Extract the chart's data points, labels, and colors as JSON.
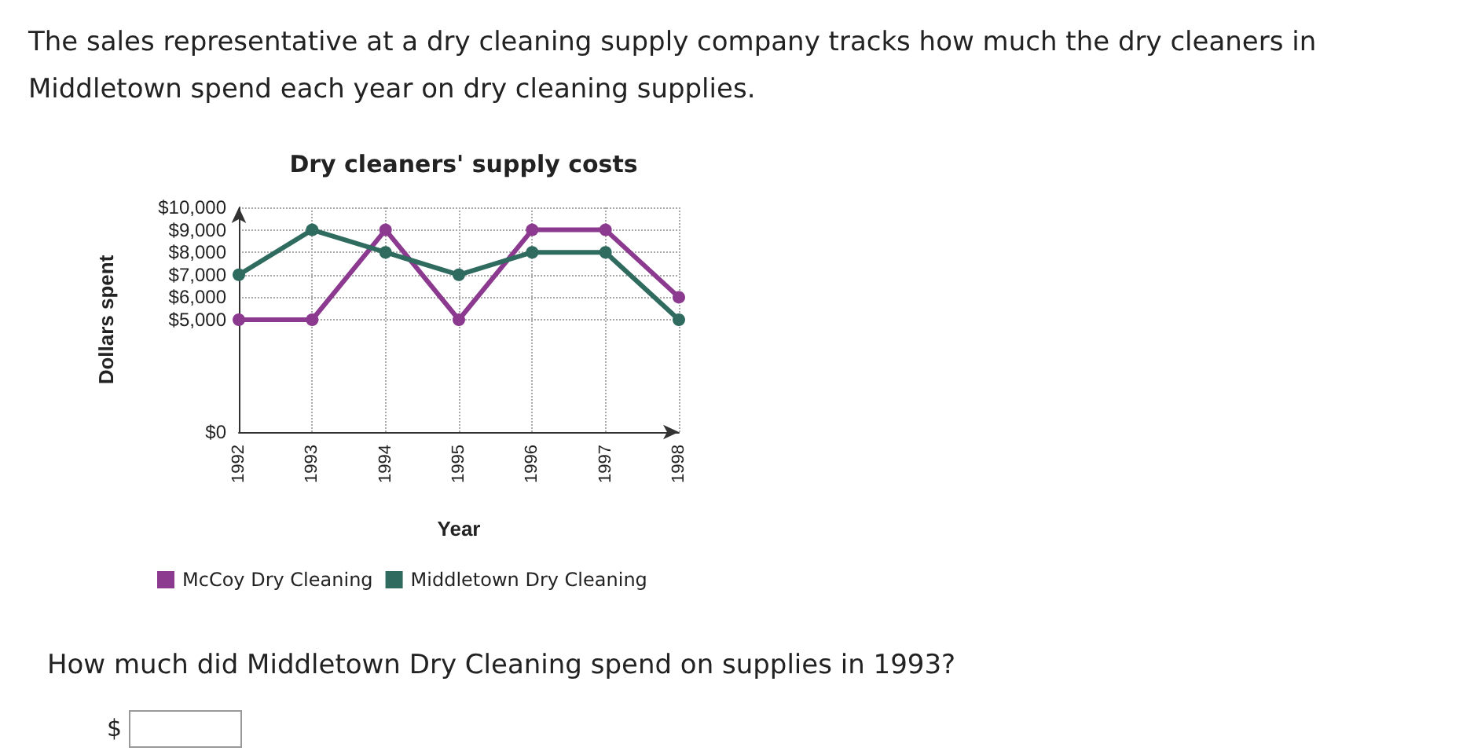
{
  "chart_data": {
    "type": "line",
    "title": "Dry cleaners' supply costs",
    "xlabel": "Year",
    "ylabel": "Dollars spent",
    "categories": [
      "1992",
      "1993",
      "1994",
      "1995",
      "1996",
      "1997",
      "1998"
    ],
    "series": [
      {
        "name": "McCoy Dry Cleaning",
        "color": "#8b3a8f",
        "values": [
          5000,
          5000,
          9000,
          5000,
          9000,
          9000,
          6000
        ]
      },
      {
        "name": "Middletown Dry Cleaning",
        "color": "#2f6b5f",
        "values": [
          7000,
          9000,
          8000,
          7000,
          8000,
          8000,
          5000
        ]
      }
    ],
    "ylim": [
      0,
      10000
    ],
    "yticks": [
      {
        "value": 0,
        "label": "$0"
      },
      {
        "value": 5000,
        "label": "$5,000"
      },
      {
        "value": 6000,
        "label": "$6,000"
      },
      {
        "value": 7000,
        "label": "$7,000"
      },
      {
        "value": 8000,
        "label": "$8,000"
      },
      {
        "value": 9000,
        "label": "$9,000"
      },
      {
        "value": 10000,
        "label": "$10,000"
      }
    ],
    "grid": true,
    "legend": "bottom",
    "marker": "circle",
    "line_style": "solid",
    "annotations": [
      "The sales representative at a dry cleaning supply company tracks how much the dry cleaners in Middletown spend each year on dry cleaning supplies.",
      "How much did Middletown Dry Cleaning spend on supplies in 1993?",
      "$"
    ]
  }
}
